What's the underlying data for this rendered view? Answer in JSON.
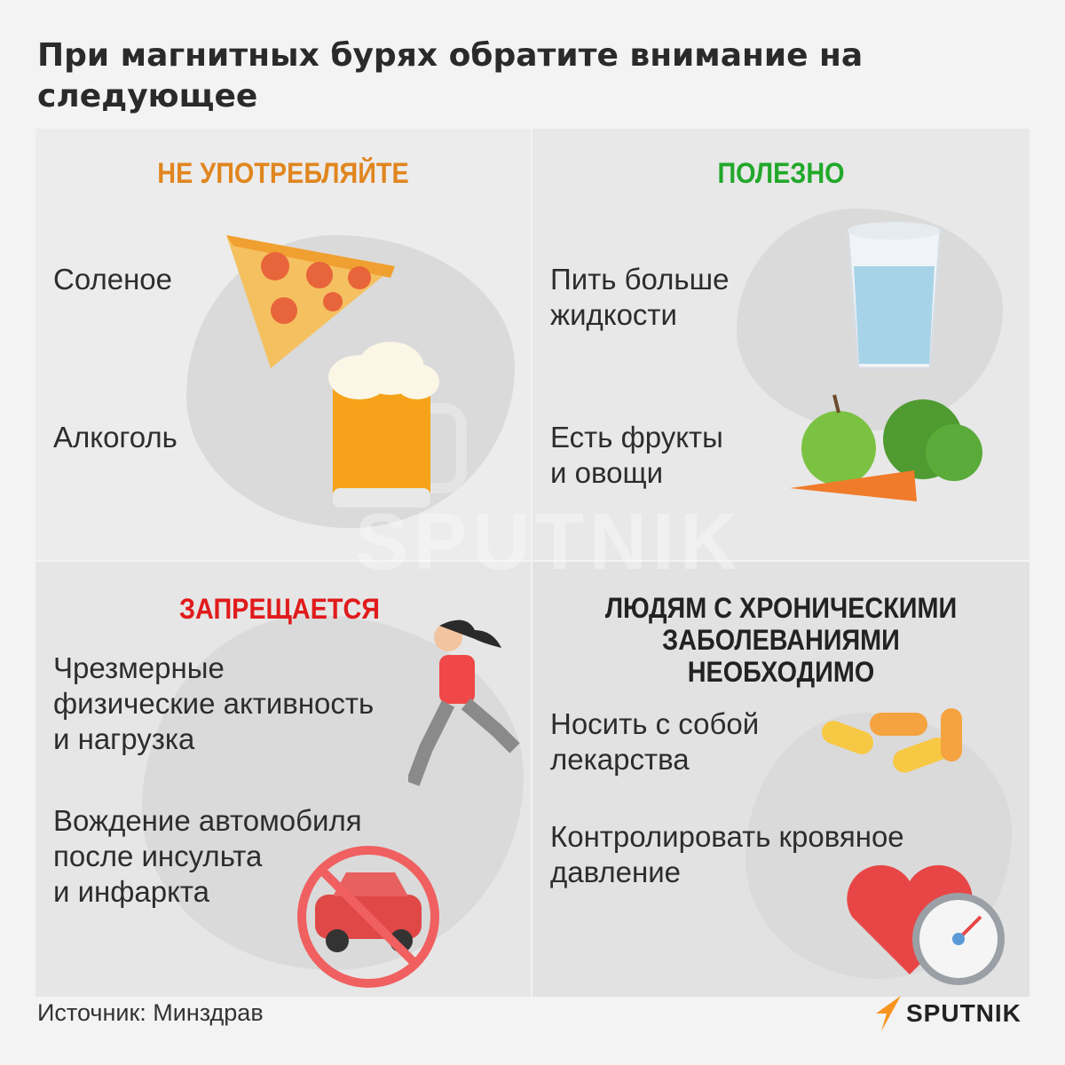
{
  "title": "При магнитных бурях обратите внимание на следующее",
  "panels": [
    {
      "heading": "НЕ УПОТРЕБЛЯЙТЕ",
      "heading_color": "#e0861f",
      "items": [
        "Соленое",
        "Алкоголь"
      ],
      "icons": [
        "pizza-icon",
        "beer-mug-icon"
      ]
    },
    {
      "heading": "ПОЛЕЗНО",
      "heading_color": "#22a82a",
      "items": [
        "Пить больше\nжидкости",
        "Есть фрукты\nи овощи"
      ],
      "icons": [
        "water-glass-icon",
        "fruits-vegetables-icon"
      ]
    },
    {
      "heading": "ЗАПРЕЩАЕТСЯ",
      "heading_color": "#e01b1b",
      "items": [
        "Чрезмерные\nфизические активность\nи нагрузка",
        "Вождение автомобиля\nпосле инсульта\nи инфаркта"
      ],
      "icons": [
        "running-woman-icon",
        "no-car-icon"
      ]
    },
    {
      "heading": "ЛЮДЯМ С ХРОНИЧЕСКИМИ\nЗАБОЛЕВАНИЯМИ\nНЕОБХОДИМО",
      "heading_color": "#222222",
      "items": [
        "Носить с собой\nлекарства",
        "Контролировать кровяное\nдавление"
      ],
      "icons": [
        "pills-icon",
        "heart-pressure-gauge-icon"
      ]
    }
  ],
  "source": "Источник: Минздрав",
  "logo": "SPUTNIK",
  "watermark": "SPUTNIK",
  "colors": {
    "brand_orange": "#f7931e",
    "background": "#f3f3f3"
  }
}
